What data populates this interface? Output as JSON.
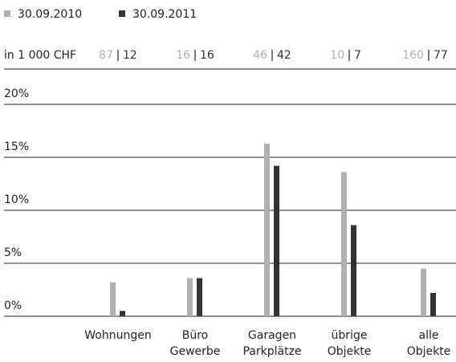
{
  "chart_data": {
    "type": "bar",
    "categories": [
      [
        "Wohnungen"
      ],
      [
        "Büro",
        "Gewerbe"
      ],
      [
        "Garagen",
        "Parkplätze"
      ],
      [
        "übrige",
        "Objekte"
      ],
      [
        "alle",
        "Objekte"
      ]
    ],
    "amount_label": "in 1 000 CHF",
    "series": [
      {
        "name": "30.09.2010",
        "color": "#b0b0b0",
        "values": [
          3.2,
          3.6,
          16.3,
          13.6,
          4.5
        ],
        "amounts": [
          87,
          16,
          46,
          10,
          160
        ]
      },
      {
        "name": "30.09.2011",
        "color": "#333333",
        "values": [
          0.5,
          3.6,
          14.2,
          8.6,
          2.2
        ],
        "amounts": [
          12,
          16,
          42,
          7,
          77
        ]
      }
    ],
    "ylim": [
      0,
      20
    ],
    "yticks": [
      {
        "value": 0,
        "label": "0%"
      },
      {
        "value": 5,
        "label": "5%"
      },
      {
        "value": 10,
        "label": "10%"
      },
      {
        "value": 15,
        "label": "15%"
      },
      {
        "value": 20,
        "label": "20%"
      }
    ],
    "grid": true
  }
}
